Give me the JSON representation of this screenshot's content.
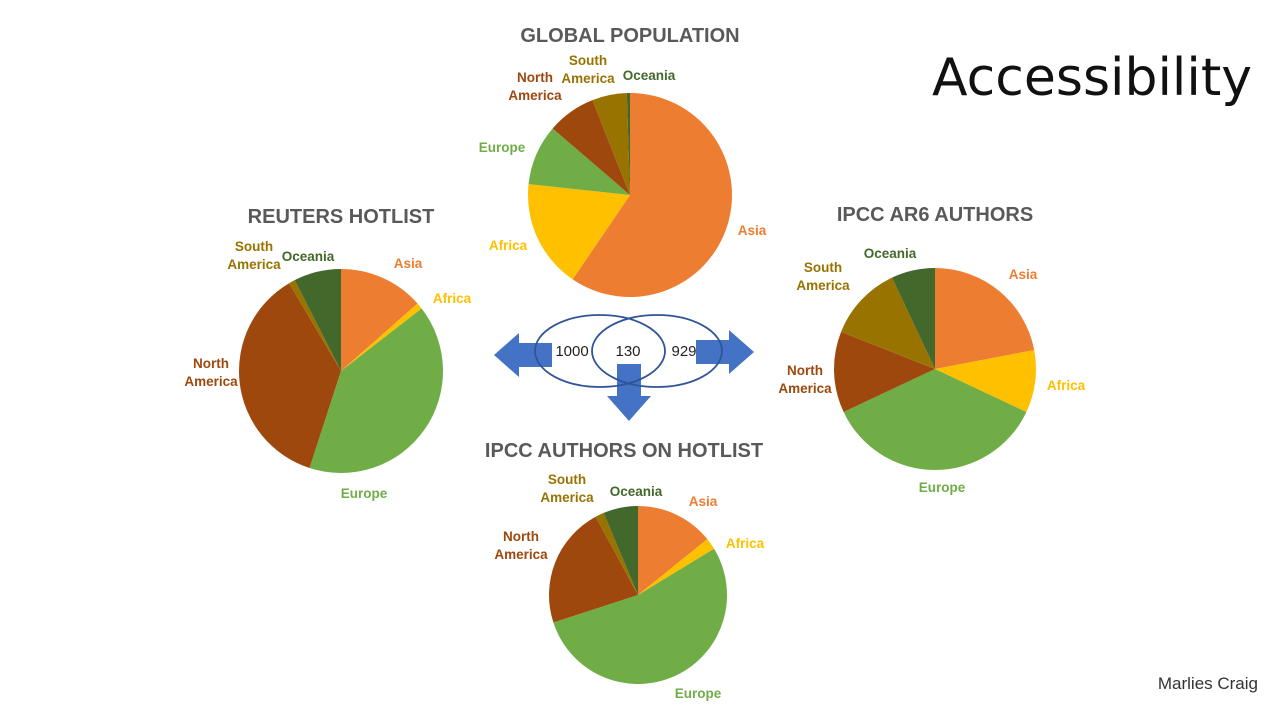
{
  "slide": {
    "title": "Accessibility",
    "credit": "Marlies Craig"
  },
  "colors": {
    "Asia": "#ED7D31",
    "Africa": "#FFC000",
    "Europe": "#70AD47",
    "North America": "#9E480E",
    "South America": "#997300",
    "Oceania": "#43682B",
    "arrow": "#4472C4",
    "venn": "#2F5597"
  },
  "chart_data": [
    {
      "type": "pie",
      "title": "GLOBAL POPULATION",
      "labels": [
        "Asia",
        "Africa",
        "Europe",
        "North America",
        "South America",
        "Oceania"
      ],
      "values": [
        59.5,
        17.2,
        9.6,
        7.7,
        5.5,
        0.5
      ]
    },
    {
      "type": "pie",
      "title": "REUTERS HOTLIST",
      "labels": [
        "Asia",
        "Africa",
        "Europe",
        "North America",
        "South America",
        "Oceania"
      ],
      "values": [
        13.5,
        1.0,
        40.5,
        36.5,
        1.0,
        7.5
      ]
    },
    {
      "type": "pie",
      "title": "IPCC AR6 AUTHORS",
      "labels": [
        "Asia",
        "Africa",
        "Europe",
        "North America",
        "South America",
        "Oceania"
      ],
      "values": [
        22.0,
        10.0,
        36.0,
        13.0,
        12.0,
        7.0
      ]
    },
    {
      "type": "pie",
      "title": "IPCC AUTHORS ON HOTLIST",
      "labels": [
        "Asia",
        "Africa",
        "Europe",
        "North America",
        "South America",
        "Oceania"
      ],
      "values": [
        13.5,
        2.0,
        51.0,
        21.0,
        1.5,
        6.0
      ]
    }
  ],
  "venn": {
    "left_only": "1000",
    "overlap": "130",
    "right_only": "929"
  }
}
